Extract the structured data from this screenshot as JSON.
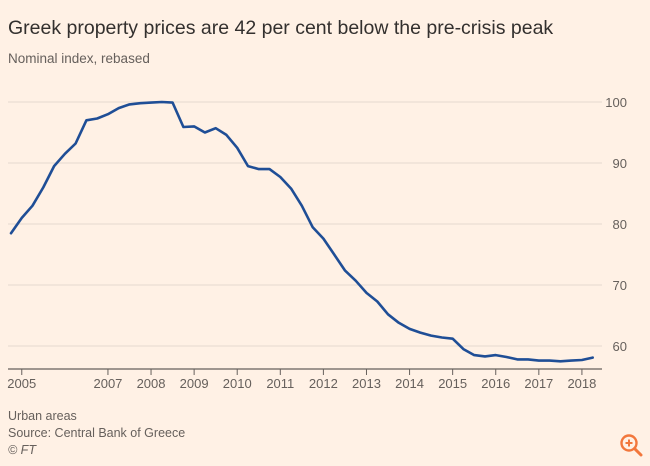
{
  "chart_data": {
    "type": "line",
    "title": "Greek property prices are 42 per cent below the pre-crisis peak",
    "subtitle": "Nominal index, rebased",
    "xlabel": "",
    "ylabel": "",
    "ylim": [
      56.5,
      100
    ],
    "yticks": [
      60,
      70,
      80,
      90,
      100
    ],
    "xlim": [
      2004.75,
      2018.35
    ],
    "xtick_labels": [
      "2005",
      "2007",
      "2008",
      "2009",
      "2010",
      "2011",
      "2012",
      "2013",
      "2014",
      "2015",
      "2016",
      "2017",
      "2018"
    ],
    "xtick_values": [
      2005,
      2007,
      2008,
      2009,
      2010,
      2011,
      2012,
      2013,
      2014,
      2015,
      2016,
      2017,
      2018
    ],
    "series": [
      {
        "name": "Urban areas",
        "color": "#1f4e96",
        "x": [
          2004.75,
          2005.0,
          2005.25,
          2005.5,
          2005.75,
          2006.0,
          2006.25,
          2006.5,
          2006.75,
          2007.0,
          2007.25,
          2007.5,
          2007.75,
          2008.0,
          2008.25,
          2008.5,
          2008.75,
          2009.0,
          2009.25,
          2009.5,
          2009.75,
          2010.0,
          2010.25,
          2010.5,
          2010.75,
          2011.0,
          2011.25,
          2011.5,
          2011.75,
          2012.0,
          2012.25,
          2012.5,
          2012.75,
          2013.0,
          2013.25,
          2013.5,
          2013.75,
          2014.0,
          2014.25,
          2014.5,
          2014.75,
          2015.0,
          2015.25,
          2015.5,
          2015.75,
          2016.0,
          2016.25,
          2016.5,
          2016.75,
          2017.0,
          2017.25,
          2017.5,
          2017.75,
          2018.0,
          2018.25
        ],
        "values": [
          78.5,
          81.0,
          83.0,
          86.0,
          89.5,
          91.5,
          93.2,
          97.0,
          97.3,
          98.0,
          99.0,
          99.6,
          99.8,
          99.9,
          100.0,
          99.9,
          95.9,
          96.0,
          95.0,
          95.7,
          94.6,
          92.5,
          89.5,
          89.0,
          89.0,
          87.7,
          85.8,
          83.0,
          79.5,
          77.6,
          75.0,
          72.4,
          70.7,
          68.7,
          67.3,
          65.2,
          63.8,
          62.8,
          62.2,
          61.7,
          61.4,
          61.2,
          59.5,
          58.5,
          58.3,
          58.5,
          58.2,
          57.8,
          57.8,
          57.6,
          57.6,
          57.5,
          57.6,
          57.7,
          58.1
        ]
      }
    ],
    "grid": true,
    "legend": "none"
  },
  "footer": {
    "note": "Urban areas",
    "source": "Source: Central Bank of Greece",
    "credit": "© FT"
  },
  "colors": {
    "background": "#fff1e5",
    "grid": "#e6d9ce",
    "line": "#1f4e96",
    "zoom_icon": "#f2773c"
  },
  "icons": {
    "zoom": "zoom-in-icon"
  }
}
